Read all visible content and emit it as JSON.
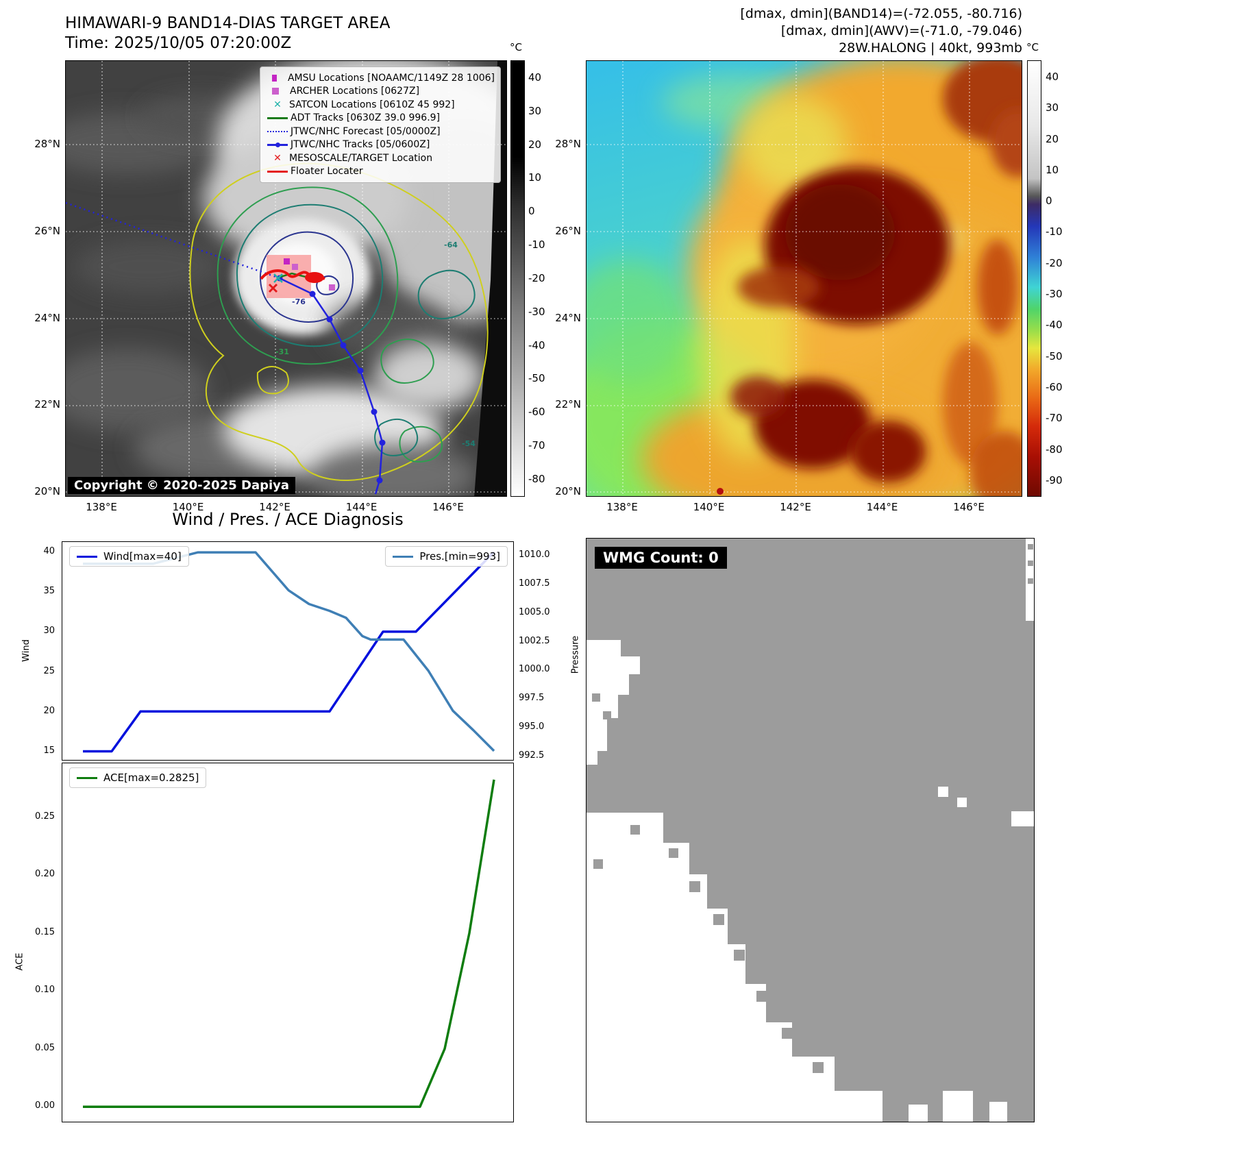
{
  "band14_panel": {
    "title": "HIMAWARI-9 BAND14-DIAS TARGET AREA",
    "time_line": "Time: 2025/10/05 07:20:00Z",
    "copyright": "Copyright © 2020-2025 Dapiya",
    "colorbar_unit": "°C",
    "colorbar_ticks": [
      "40",
      "30",
      "20",
      "10",
      "0",
      "-10",
      "-20",
      "-30",
      "-40",
      "-50",
      "-60",
      "-70",
      "-80"
    ],
    "x_ticks": [
      "138°E",
      "140°E",
      "142°E",
      "144°E",
      "146°E"
    ],
    "y_ticks": [
      "28°N",
      "26°N",
      "24°N",
      "22°N",
      "20°N"
    ],
    "contour_labels": [
      {
        "text": "-76",
        "color": "#2b3590"
      },
      {
        "text": "-64",
        "color": "#1d7d72"
      },
      {
        "text": "-54",
        "color": "#1d7d72"
      },
      {
        "text": "-31",
        "color": "#2e9e50"
      }
    ],
    "legend": [
      {
        "label": "AMSU Locations [NOAAMC/1149Z 28 1006]",
        "type": "square",
        "color": "#c324c3"
      },
      {
        "label": "ARCHER Locations [0627Z]",
        "type": "square",
        "color": "#cc5fcc"
      },
      {
        "label": "SATCON Locations [0610Z 45 992]",
        "type": "x",
        "color": "#20b2aa"
      },
      {
        "label": "ADT Tracks [0630Z 39.0 996.9]",
        "type": "line",
        "color": "#1a7a1a"
      },
      {
        "label": "JTWC/NHC Forecast [05/0000Z]",
        "type": "dotted",
        "color": "#2222dd"
      },
      {
        "label": "JTWC/NHC Tracks [05/0600Z]",
        "type": "line-marker",
        "color": "#2222dd"
      },
      {
        "label": "MESOSCALE/TARGET Location",
        "type": "x",
        "color": "#e41a1c"
      },
      {
        "label": "Floater Locater",
        "type": "line",
        "color": "#e41a1c"
      }
    ]
  },
  "awv_panel": {
    "header_lines": [
      "[dmax, dmin](BAND14)=(-72.055, -80.716)",
      "[dmax, dmin](AWV)=(-71.0, -79.046)",
      "28W.HALONG | 40kt, 993mb"
    ],
    "colorbar_unit": "°C",
    "colorbar_ticks": [
      "40",
      "30",
      "20",
      "10",
      "0",
      "-10",
      "-20",
      "-30",
      "-40",
      "-50",
      "-60",
      "-70",
      "-80",
      "-90"
    ],
    "x_ticks": [
      "138°E",
      "140°E",
      "142°E",
      "144°E",
      "146°E"
    ],
    "y_ticks": [
      "28°N",
      "26°N",
      "24°N",
      "22°N",
      "20°N"
    ]
  },
  "wmg_panel": {
    "label": "WMG Count: 0"
  },
  "chart_data": [
    {
      "type": "line",
      "title": "Wind / Pres. / ACE Diagnosis",
      "x_range": [
        0,
        100
      ],
      "left_label": "Wind",
      "right_label": "Pressure",
      "left_ylim": [
        13.75,
        41.25
      ],
      "right_ylim": [
        992.1,
        1011.2
      ],
      "left_yticks": [
        "40",
        "35",
        "30",
        "25",
        "20",
        "15"
      ],
      "right_yticks": [
        "1010.0",
        "1007.5",
        "1005.0",
        "1002.5",
        "1000.0",
        "997.5",
        "995.0",
        "992.5"
      ],
      "series": [
        {
          "name": "Wind[max=40]",
          "axis": "left",
          "color": "#0010dd",
          "x": [
            0,
            7,
            14,
            60,
            73,
            81,
            100
          ],
          "values": [
            15,
            15,
            20,
            20,
            30,
            30,
            40
          ]
        },
        {
          "name": "Pres.[min=993]",
          "axis": "right",
          "color": "#3f7fb5",
          "x": [
            0,
            17,
            28,
            42,
            50,
            55,
            60,
            64,
            68,
            70,
            78,
            84,
            90,
            95,
            100
          ],
          "values": [
            1009.3,
            1009.3,
            1010.3,
            1010.3,
            1007.0,
            1005.8,
            1005.2,
            1004.6,
            1003.0,
            1002.7,
            1002.7,
            1000.0,
            996.5,
            994.8,
            993.0
          ]
        }
      ]
    },
    {
      "type": "line",
      "x_range": [
        0,
        100
      ],
      "ylabel": "ACE",
      "ylim": [
        -0.0141,
        0.2966
      ],
      "yticks": [
        "0.25",
        "0.20",
        "0.15",
        "0.10",
        "0.05",
        "0.00"
      ],
      "series": [
        {
          "name": "ACE[max=0.2825]",
          "color": "#0f7d0f",
          "x": [
            0,
            82,
            88,
            94,
            100
          ],
          "values": [
            0,
            0,
            0.05,
            0.15,
            0.2825
          ]
        }
      ]
    }
  ]
}
